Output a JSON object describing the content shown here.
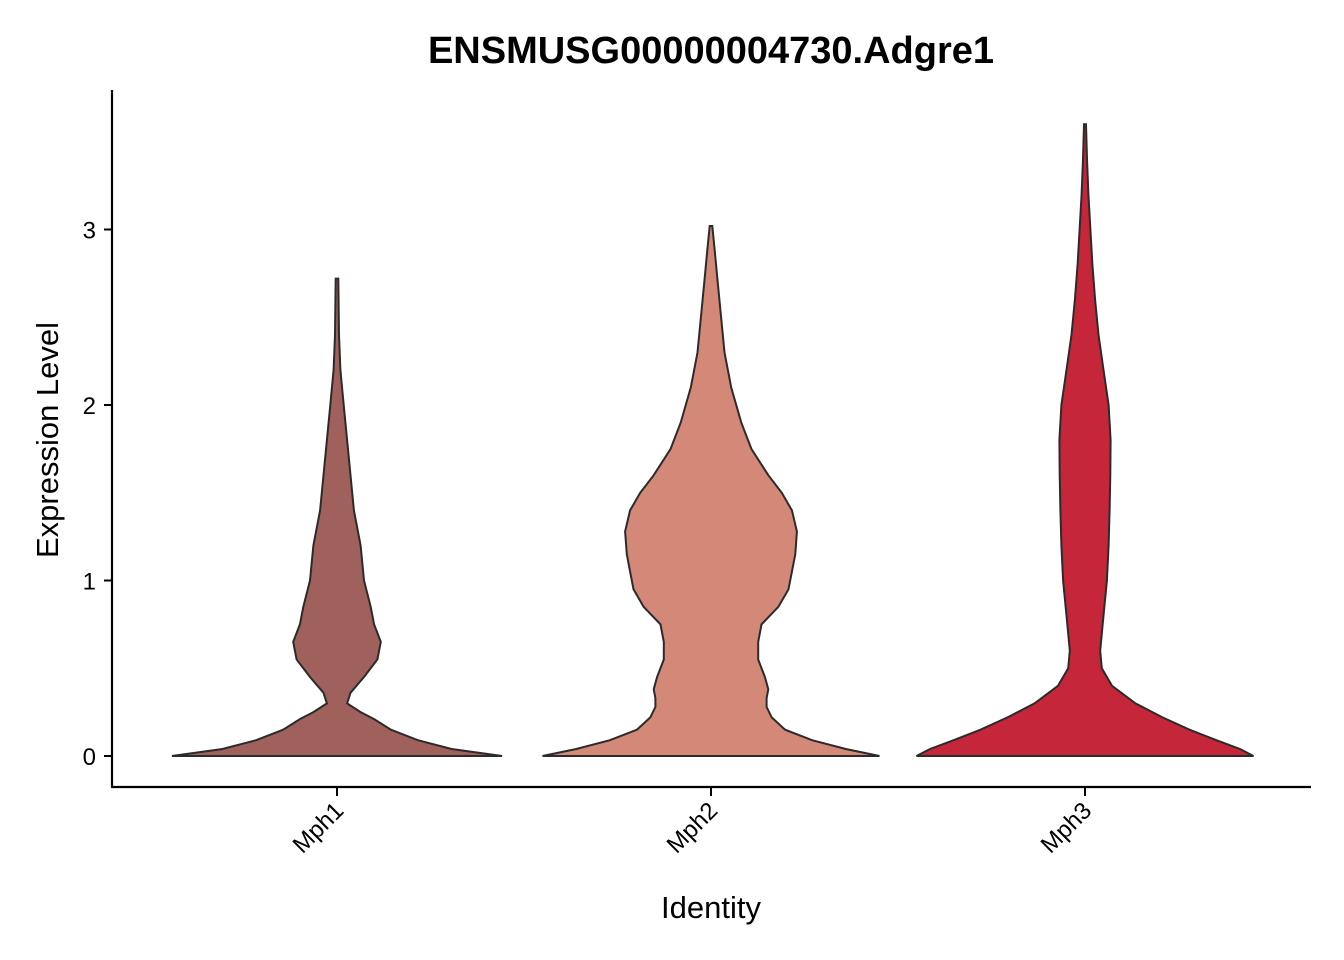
{
  "chart_data": {
    "type": "violin",
    "title": "ENSMUSG00000004730.Adgre1",
    "xlabel": "Identity",
    "ylabel": "Expression Level",
    "categories": [
      "Mph1",
      "Mph2",
      "Mph3"
    ],
    "y_ticks": [
      0,
      1,
      2,
      3
    ],
    "ylim": [
      -0.18,
      3.78
    ],
    "grid": false,
    "legend": "none",
    "series": [
      {
        "category": "Mph1",
        "color": "#a0615d",
        "max": 2.72,
        "profile": [
          [
            0.0,
            0.49
          ],
          [
            0.04,
            0.34
          ],
          [
            0.09,
            0.24
          ],
          [
            0.15,
            0.16
          ],
          [
            0.21,
            0.11
          ],
          [
            0.25,
            0.07
          ],
          [
            0.3,
            0.03
          ],
          [
            0.36,
            0.04
          ],
          [
            0.45,
            0.08
          ],
          [
            0.55,
            0.12
          ],
          [
            0.65,
            0.13
          ],
          [
            0.75,
            0.11
          ],
          [
            0.85,
            0.1
          ],
          [
            1.0,
            0.08
          ],
          [
            1.2,
            0.07
          ],
          [
            1.4,
            0.05
          ],
          [
            1.6,
            0.04
          ],
          [
            1.8,
            0.03
          ],
          [
            2.0,
            0.02
          ],
          [
            2.2,
            0.01
          ],
          [
            2.4,
            0.006
          ],
          [
            2.72,
            0.004
          ]
        ]
      },
      {
        "category": "Mph2",
        "color": "#d38878",
        "max": 3.02,
        "profile": [
          [
            0.0,
            0.5
          ],
          [
            0.04,
            0.4
          ],
          [
            0.09,
            0.3
          ],
          [
            0.15,
            0.22
          ],
          [
            0.22,
            0.18
          ],
          [
            0.28,
            0.165
          ],
          [
            0.33,
            0.165
          ],
          [
            0.38,
            0.17
          ],
          [
            0.45,
            0.16
          ],
          [
            0.55,
            0.14
          ],
          [
            0.65,
            0.14
          ],
          [
            0.75,
            0.15
          ],
          [
            0.85,
            0.2
          ],
          [
            0.95,
            0.23
          ],
          [
            1.05,
            0.24
          ],
          [
            1.15,
            0.25
          ],
          [
            1.28,
            0.255
          ],
          [
            1.4,
            0.24
          ],
          [
            1.5,
            0.21
          ],
          [
            1.6,
            0.17
          ],
          [
            1.75,
            0.12
          ],
          [
            1.9,
            0.09
          ],
          [
            2.1,
            0.06
          ],
          [
            2.3,
            0.04
          ],
          [
            2.5,
            0.03
          ],
          [
            2.7,
            0.02
          ],
          [
            2.9,
            0.01
          ],
          [
            3.02,
            0.004
          ]
        ]
      },
      {
        "category": "Mph3",
        "color": "#c62639",
        "max": 3.6,
        "profile": [
          [
            0.0,
            0.5
          ],
          [
            0.04,
            0.46
          ],
          [
            0.09,
            0.39
          ],
          [
            0.15,
            0.31
          ],
          [
            0.22,
            0.23
          ],
          [
            0.3,
            0.15
          ],
          [
            0.4,
            0.08
          ],
          [
            0.5,
            0.05
          ],
          [
            0.6,
            0.045
          ],
          [
            0.8,
            0.055
          ],
          [
            1.0,
            0.065
          ],
          [
            1.2,
            0.07
          ],
          [
            1.4,
            0.073
          ],
          [
            1.6,
            0.075
          ],
          [
            1.8,
            0.076
          ],
          [
            2.0,
            0.07
          ],
          [
            2.2,
            0.055
          ],
          [
            2.4,
            0.04
          ],
          [
            2.6,
            0.03
          ],
          [
            2.8,
            0.022
          ],
          [
            3.0,
            0.016
          ],
          [
            3.2,
            0.01
          ],
          [
            3.4,
            0.006
          ],
          [
            3.6,
            0.003
          ]
        ]
      }
    ]
  }
}
